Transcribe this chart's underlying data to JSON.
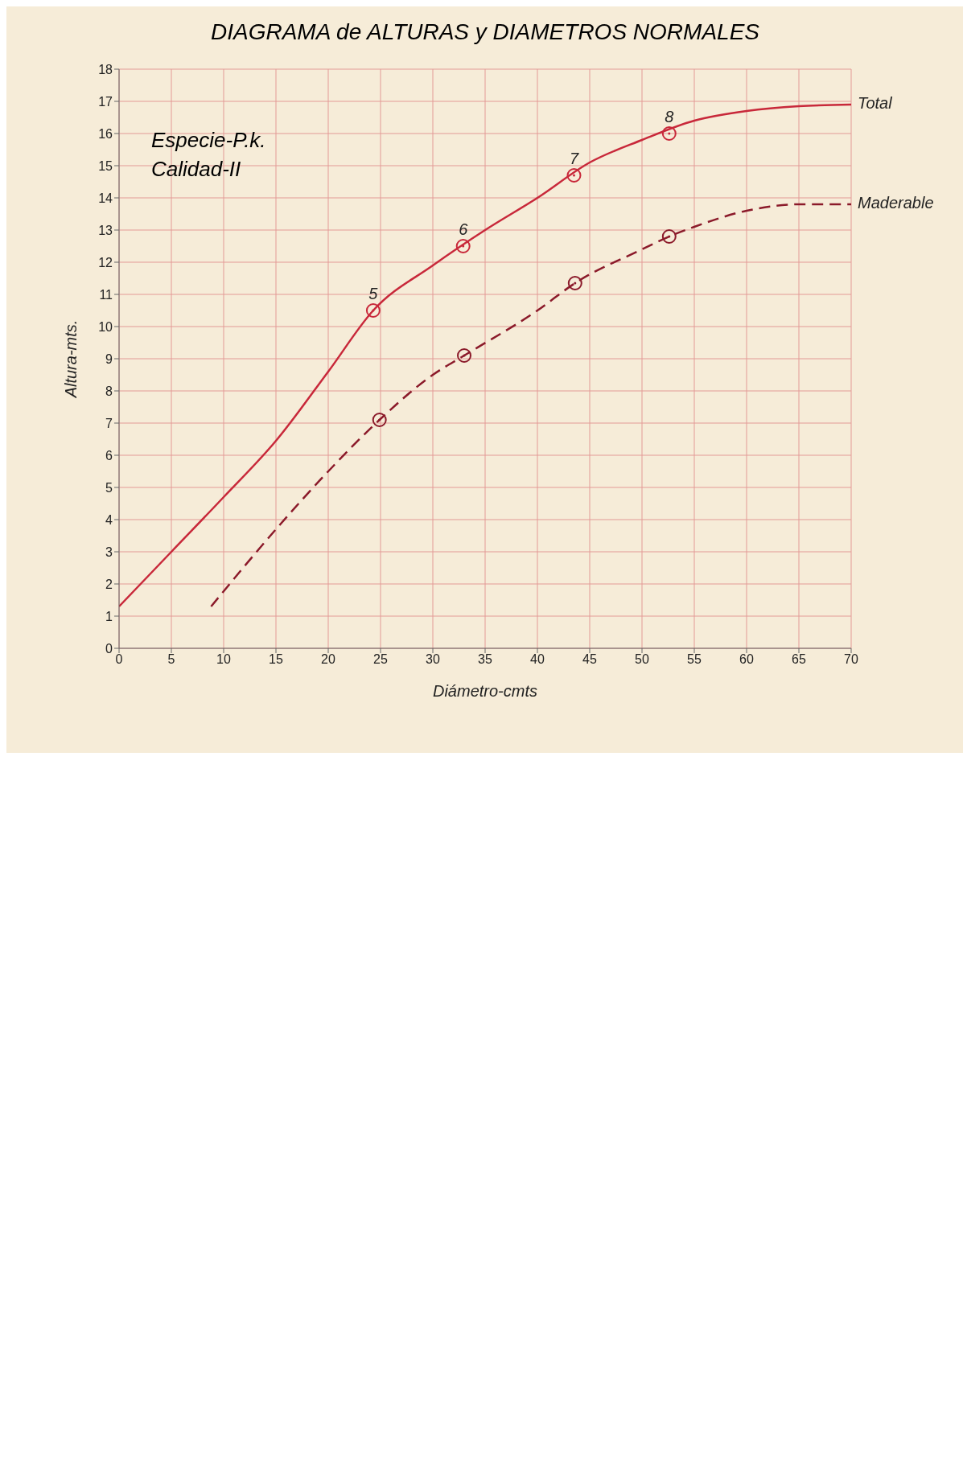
{
  "chart_data": {
    "type": "line",
    "title": "DIAGRAMA de ALTURAS y DIAMETROS NORMALES",
    "xlabel": "Diámetro-cmts",
    "ylabel": "Altura-mts.",
    "annotations": [
      "Especie-P.k.",
      "Calidad-II",
      {
        "text": "5",
        "x": 24.3,
        "y": 10.5
      },
      {
        "text": "6",
        "x": 32.9,
        "y": 12.5
      },
      {
        "text": "7",
        "x": 43.5,
        "y": 14.7
      },
      {
        "text": "8",
        "x": 52.6,
        "y": 16.0
      }
    ],
    "xlim": [
      0,
      70
    ],
    "xticks": [
      0,
      5,
      10,
      15,
      20,
      25,
      30,
      35,
      40,
      45,
      50,
      55,
      60,
      65,
      70
    ],
    "ylim": [
      0,
      18
    ],
    "yticks": [
      0,
      1,
      2,
      3,
      4,
      5,
      6,
      7,
      8,
      9,
      10,
      11,
      12,
      13,
      14,
      15,
      16,
      17,
      18
    ],
    "grid": true,
    "legend": false,
    "series": [
      {
        "name": "Total",
        "color": "#c8283a",
        "line_style": "solid",
        "marker": "none",
        "x": [
          0,
          5,
          10,
          15,
          20,
          24.3,
          30,
          35,
          40,
          45,
          50,
          55,
          60,
          65,
          70
        ],
        "values": [
          1.3,
          3.0,
          4.7,
          6.45,
          8.6,
          10.5,
          11.9,
          13.0,
          14.0,
          15.1,
          15.8,
          16.4,
          16.7,
          16.85,
          16.9
        ]
      },
      {
        "name": "Maderable",
        "color": "#8b1a2a",
        "line_style": "dashed",
        "marker": "none",
        "x": [
          8.8,
          15,
          20,
          24.9,
          30,
          33,
          40,
          43.6,
          50,
          52.6,
          55,
          60,
          65,
          70
        ],
        "values": [
          1.3,
          3.7,
          5.5,
          7.1,
          8.5,
          9.1,
          10.5,
          11.35,
          12.4,
          12.8,
          13.1,
          13.6,
          13.8,
          13.8
        ]
      },
      {
        "type": "scatter",
        "color": "#c8283a",
        "marker": "circle",
        "x": [
          24.3,
          32.9,
          43.5,
          52.6
        ],
        "values": [
          10.5,
          12.5,
          14.7,
          16.0
        ]
      },
      {
        "type": "scatter",
        "color": "#8b1a2a",
        "marker": "circle",
        "x": [
          24.9,
          33.0,
          43.6,
          52.6
        ],
        "values": [
          7.1,
          9.1,
          11.35,
          12.8
        ]
      }
    ]
  }
}
